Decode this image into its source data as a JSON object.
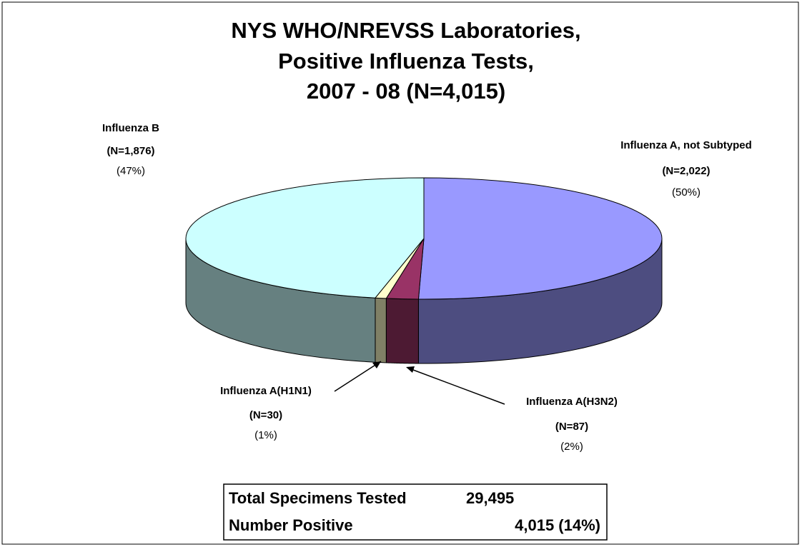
{
  "chart_data": {
    "type": "pie3d",
    "title": [
      "NYS WHO/NREVSS Laboratories,",
      "Positive Influenza Tests,",
      "2007 - 08  (N=4,015)"
    ],
    "categories": [
      "Influenza A, not Subtyped",
      "Influenza A(H3N2)",
      "Influenza A(H1N1)",
      "Influenza B"
    ],
    "values": [
      2022,
      87,
      30,
      1876
    ],
    "value_labels": [
      "(N=2,022)",
      "(N=87)",
      "(N=30)",
      "(N=1,876)"
    ],
    "share_labels": [
      "(50%)",
      "(2%)",
      "(1%)",
      "(47%)"
    ],
    "colors": [
      "#9999ff",
      "#993366",
      "#ffffcc",
      "#ccffff"
    ],
    "side_colors": [
      "#4d4d80",
      "#4d1a33",
      "#808066",
      "#668080"
    ]
  },
  "summary_table": {
    "rows": [
      [
        "Total Specimens Tested",
        "29,495"
      ],
      [
        "Number Positive",
        "4,015 (14%)"
      ]
    ]
  }
}
